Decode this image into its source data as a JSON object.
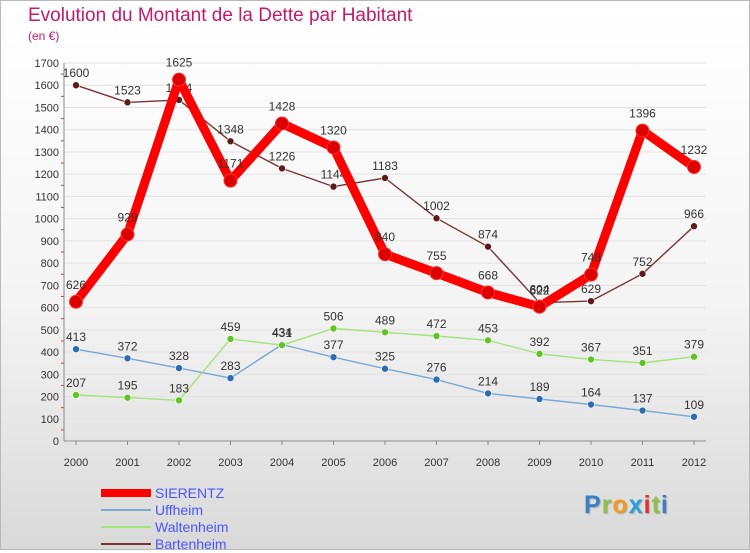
{
  "title": "Evolution du Montant de la Dette par Habitant",
  "subtitle": "(en €)",
  "brand": {
    "letters": [
      "P",
      "r",
      "o",
      "x",
      "i",
      "t",
      "i"
    ],
    "colors": [
      "#3b7fc4",
      "#8fc143",
      "#f39a1e",
      "#2b9fd9",
      "#e2312c",
      "#8fc143",
      "#3b7fc4"
    ]
  },
  "chart_data": {
    "type": "line",
    "title": "Evolution du Montant de la Dette par Habitant",
    "subtitle": "(en €)",
    "xlabel": "",
    "ylabel": "",
    "ylim": [
      0,
      1700
    ],
    "yticks": [
      0,
      100,
      200,
      300,
      400,
      500,
      600,
      700,
      800,
      900,
      1000,
      1100,
      1200,
      1300,
      1400,
      1500,
      1600,
      1700
    ],
    "grid": true,
    "legend_position": "bottom-left",
    "x": [
      "2000",
      "2001",
      "2002",
      "2003",
      "2004",
      "2005",
      "2006",
      "2007",
      "2008",
      "2009",
      "2010",
      "2011",
      "2012"
    ],
    "series": [
      {
        "name": "SIERENTZ",
        "color": "#ff0000",
        "marker_color": "#dd0000",
        "values": [
          626,
          929,
          1625,
          1171,
          1428,
          1320,
          840,
          755,
          668,
          604,
          748,
          1396,
          1232
        ]
      },
      {
        "name": "Uffheim",
        "color": "#7ba7d3",
        "marker_color": "#2e6bb5",
        "values": [
          413,
          372,
          328,
          283,
          434,
          377,
          325,
          276,
          214,
          189,
          164,
          137,
          109
        ]
      },
      {
        "name": "Waltenheim",
        "color": "#a6e27a",
        "marker_color": "#5fc424",
        "values": [
          207,
          195,
          183,
          459,
          431,
          506,
          489,
          472,
          453,
          392,
          367,
          351,
          379
        ]
      },
      {
        "name": "Bartenheim",
        "color": "#7a3434",
        "marker_color": "#5c1a1a",
        "values": [
          1600,
          1523,
          1534,
          1348,
          1226,
          1144,
          1183,
          1002,
          874,
          622,
          629,
          752,
          966
        ]
      }
    ]
  }
}
